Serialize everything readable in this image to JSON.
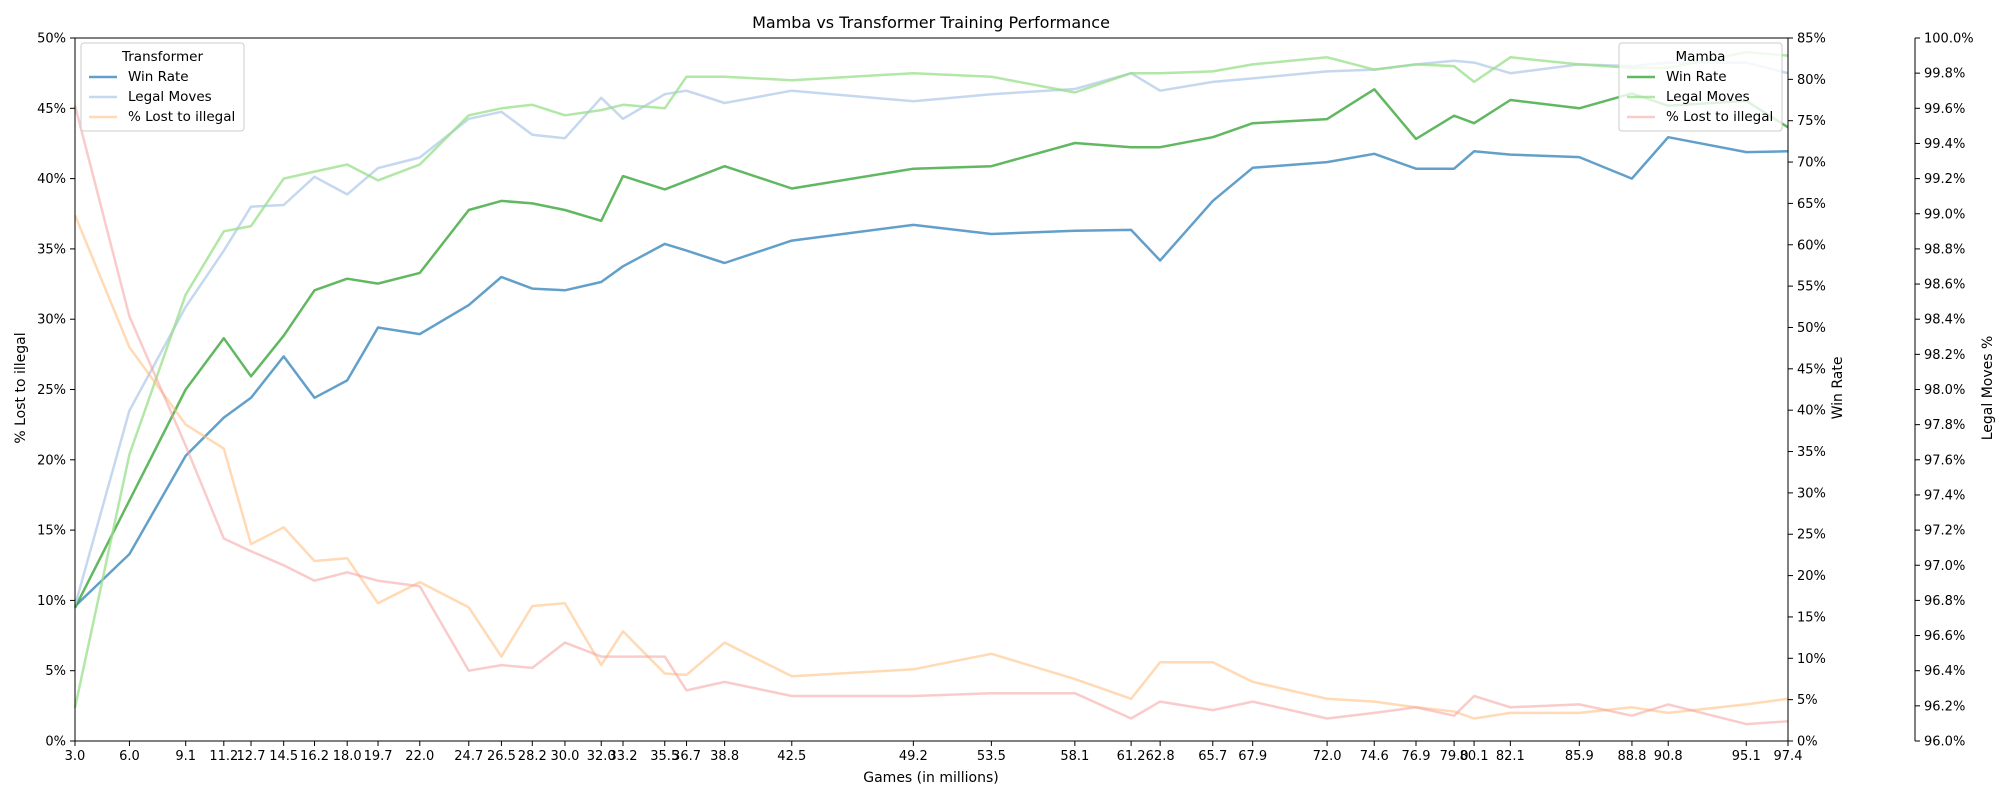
{
  "chart_data": {
    "type": "line",
    "title": "Mamba vs Transformer Training Performance",
    "xlabel": "Games (in millions)",
    "ylabel_left": "% Lost to illegal",
    "ylabel_right1": "Win Rate",
    "ylabel_right2": "Legal Moves %",
    "x_ticks": [
      "3.0",
      "6.0",
      "9.1",
      "11.2",
      "12.7",
      "14.5",
      "16.2",
      "18.0",
      "19.7",
      "22.0",
      "24.7",
      "26.5",
      "28.2",
      "30.0",
      "32.0",
      "33.2",
      "35.5",
      "36.7",
      "38.8",
      "42.5",
      "49.2",
      "53.5",
      "58.1",
      "61.2",
      "62.8",
      "65.7",
      "67.9",
      "72.0",
      "74.6",
      "76.9",
      "79.0",
      "80.1",
      "82.1",
      "85.9",
      "88.8",
      "90.8",
      "95.1",
      "97.4"
    ],
    "xlim": [
      3.0,
      97.4
    ],
    "left_axis": {
      "ylim": [
        0,
        50
      ],
      "ticks": [
        "0%",
        "5%",
        "10%",
        "15%",
        "20%",
        "25%",
        "30%",
        "35%",
        "40%",
        "45%",
        "50%"
      ]
    },
    "right_axis_1": {
      "ylim": [
        0,
        85
      ],
      "ticks": [
        "0%",
        "5%",
        "10%",
        "15%",
        "20%",
        "25%",
        "30%",
        "35%",
        "40%",
        "45%",
        "50%",
        "55%",
        "60%",
        "65%",
        "70%",
        "75%",
        "80%",
        "85%"
      ]
    },
    "right_axis_2": {
      "ylim": [
        96.0,
        100.0
      ],
      "ticks": [
        "96.0%",
        "96.2%",
        "96.4%",
        "96.6%",
        "96.8%",
        "97.0%",
        "97.2%",
        "97.4%",
        "97.6%",
        "97.8%",
        "98.0%",
        "98.2%",
        "98.4%",
        "98.6%",
        "98.8%",
        "99.0%",
        "99.2%",
        "99.4%",
        "99.6%",
        "99.8%",
        "100.0%"
      ]
    },
    "legends": [
      {
        "title": "Transformer",
        "position": "top-left",
        "entries": [
          "Win Rate",
          "Legal Moves",
          "% Lost to illegal"
        ]
      },
      {
        "title": "Mamba",
        "position": "top-right",
        "entries": [
          "Win Rate",
          "Legal Moves",
          "% Lost to illegal"
        ]
      }
    ],
    "series": [
      {
        "name": "Win Rate",
        "group": "Transformer",
        "axis": "right1",
        "color": "#1f77b4",
        "opacity": 0.7,
        "width": 2.5,
        "x": [
          3.0,
          6.0,
          9.1,
          11.2,
          12.7,
          14.5,
          16.2,
          18.0,
          19.7,
          22.0,
          24.7,
          26.5,
          28.2,
          30.0,
          32.0,
          33.2,
          35.5,
          36.7,
          38.8,
          42.5,
          49.2,
          53.5,
          58.1,
          61.2,
          62.8,
          65.7,
          67.9,
          72.0,
          74.6,
          76.9,
          79.0,
          80.1,
          82.1,
          85.9,
          88.8,
          90.8,
          95.1,
          97.4
        ],
        "y": [
          16.3,
          22.6,
          34.5,
          39.1,
          41.5,
          46.5,
          41.5,
          43.6,
          50.0,
          49.2,
          52.7,
          56.1,
          54.7,
          54.5,
          55.5,
          57.4,
          60.1,
          59.3,
          57.8,
          60.5,
          62.4,
          61.3,
          61.7,
          61.8,
          58.1,
          65.3,
          69.3,
          70.0,
          71.0,
          69.2,
          69.2,
          71.3,
          70.9,
          70.6,
          68.0,
          73.0,
          71.2,
          71.3
        ]
      },
      {
        "name": "Win Rate",
        "group": "Mamba",
        "axis": "right1",
        "color": "#2ca02c",
        "opacity": 0.75,
        "width": 2.5,
        "x": [
          3.0,
          9.1,
          11.2,
          12.7,
          14.5,
          16.2,
          18.0,
          19.7,
          22.0,
          24.7,
          26.5,
          28.2,
          30.0,
          32.0,
          33.2,
          35.5,
          38.8,
          42.5,
          49.2,
          53.5,
          58.1,
          61.2,
          62.8,
          65.7,
          67.9,
          72.0,
          74.6,
          76.9,
          79.0,
          80.1,
          82.1,
          85.9,
          88.8,
          90.8,
          95.1,
          97.4
        ],
        "y": [
          16.1,
          42.5,
          48.7,
          44.1,
          49.0,
          54.5,
          55.9,
          55.3,
          56.6,
          64.2,
          65.3,
          65.0,
          64.2,
          62.9,
          68.3,
          66.7,
          69.5,
          66.8,
          69.2,
          69.5,
          72.3,
          71.8,
          71.8,
          73.0,
          74.7,
          75.2,
          78.8,
          72.8,
          75.6,
          74.7,
          77.5,
          76.5,
          78.3,
          76.8,
          77.4,
          74.2
        ]
      },
      {
        "name": "Legal Moves",
        "group": "Transformer",
        "axis": "right2",
        "color": "#aec7e8",
        "opacity": 0.7,
        "width": 2.5,
        "x": [
          3.0,
          6.0,
          9.1,
          11.2,
          12.7,
          14.5,
          16.2,
          18.0,
          19.7,
          22.0,
          24.7,
          26.5,
          28.2,
          30.0,
          32.0,
          33.2,
          35.5,
          36.7,
          38.8,
          42.5,
          49.2,
          53.5,
          58.1,
          61.2,
          62.8,
          65.7,
          67.9,
          72.0,
          74.6,
          76.9,
          79.0,
          80.1,
          82.1,
          85.9,
          88.8,
          90.8,
          95.1,
          97.4
        ],
        "y": [
          96.77,
          97.88,
          98.47,
          98.79,
          99.04,
          99.05,
          99.21,
          99.11,
          99.26,
          99.32,
          99.54,
          99.58,
          99.45,
          99.43,
          99.66,
          99.54,
          99.68,
          99.7,
          99.63,
          99.7,
          99.64,
          99.68,
          99.71,
          99.8,
          99.7,
          99.75,
          99.77,
          99.81,
          99.82,
          99.85,
          99.87,
          99.86,
          99.8,
          99.85,
          99.84,
          99.86,
          99.86,
          99.8
        ]
      },
      {
        "name": "Legal Moves",
        "group": "Mamba",
        "axis": "right2",
        "color": "#98df8a",
        "opacity": 0.75,
        "width": 2.5,
        "x": [
          3.0,
          6.0,
          9.1,
          11.2,
          12.7,
          14.5,
          16.2,
          18.0,
          19.7,
          22.0,
          24.7,
          26.5,
          28.2,
          30.0,
          32.0,
          33.2,
          35.5,
          36.7,
          38.8,
          42.5,
          49.2,
          53.5,
          58.1,
          61.2,
          62.8,
          65.7,
          67.9,
          72.0,
          74.6,
          76.9,
          79.0,
          80.1,
          82.1,
          85.9,
          88.8,
          90.8,
          95.1,
          97.4
        ],
        "y": [
          96.19,
          97.63,
          98.54,
          98.9,
          98.93,
          99.2,
          99.24,
          99.28,
          99.19,
          99.28,
          99.56,
          99.6,
          99.62,
          99.56,
          99.59,
          99.62,
          99.6,
          99.78,
          99.78,
          99.76,
          99.8,
          99.78,
          99.69,
          99.8,
          99.8,
          99.81,
          99.85,
          99.89,
          99.82,
          99.85,
          99.84,
          99.75,
          99.89,
          99.85,
          99.83,
          99.83,
          99.92,
          99.9
        ]
      },
      {
        "name": "% Lost to illegal",
        "group": "Transformer",
        "axis": "left",
        "color": "#ffbb78",
        "opacity": 0.55,
        "width": 2.5,
        "x": [
          3.0,
          6.0,
          9.1,
          11.2,
          12.7,
          14.5,
          16.2,
          18.0,
          19.7,
          22.0,
          24.7,
          26.5,
          28.2,
          30.0,
          32.0,
          33.2,
          35.5,
          36.7,
          38.8,
          42.5,
          49.2,
          53.5,
          58.1,
          61.2,
          62.8,
          65.7,
          67.9,
          72.0,
          74.6,
          76.9,
          79.0,
          80.1,
          82.1,
          85.9,
          88.8,
          90.8,
          95.1,
          97.4
        ],
        "y": [
          37.4,
          28.0,
          22.5,
          20.8,
          14.0,
          15.2,
          12.8,
          13.0,
          9.8,
          11.3,
          9.5,
          6.0,
          9.6,
          9.8,
          5.4,
          7.8,
          4.8,
          4.7,
          7.0,
          4.6,
          5.1,
          6.2,
          4.4,
          3.0,
          5.6,
          5.6,
          4.2,
          3.0,
          2.8,
          2.4,
          2.1,
          1.6,
          2.0,
          2.0,
          2.4,
          2.0,
          2.6,
          3.0
        ]
      },
      {
        "name": "% Lost to illegal",
        "group": "Mamba",
        "axis": "left",
        "color": "#f4a3a0",
        "opacity": 0.55,
        "width": 2.5,
        "x": [
          3.0,
          6.0,
          9.1,
          11.2,
          12.7,
          14.5,
          16.2,
          18.0,
          19.7,
          22.0,
          24.7,
          26.5,
          28.2,
          30.0,
          32.0,
          33.2,
          35.5,
          36.7,
          38.8,
          42.5,
          49.2,
          53.5,
          58.1,
          61.2,
          62.8,
          65.7,
          67.9,
          72.0,
          74.6,
          76.9,
          79.0,
          80.1,
          82.1,
          85.9,
          88.8,
          90.8,
          95.1,
          97.4
        ],
        "y": [
          45.2,
          30.2,
          21.0,
          14.4,
          13.5,
          12.5,
          11.4,
          12.0,
          11.4,
          11.0,
          5.0,
          5.4,
          5.2,
          7.0,
          6.0,
          6.0,
          6.0,
          3.6,
          4.2,
          3.2,
          3.2,
          3.4,
          3.4,
          1.6,
          2.8,
          2.2,
          2.8,
          1.6,
          2.0,
          2.4,
          1.8,
          3.2,
          2.4,
          2.6,
          1.8,
          2.6,
          1.2,
          1.4
        ]
      }
    ]
  }
}
